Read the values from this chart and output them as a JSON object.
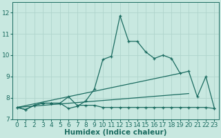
{
  "xlabel": "Humidex (Indice chaleur)",
  "background_color": "#c8e8e0",
  "line_color": "#1a6b60",
  "grid_color": "#b0d4cc",
  "xlim": [
    -0.5,
    23.5
  ],
  "ylim": [
    7.0,
    12.5
  ],
  "yticks": [
    7,
    8,
    9,
    10,
    11,
    12
  ],
  "xticks": [
    0,
    1,
    2,
    3,
    4,
    5,
    6,
    7,
    8,
    9,
    10,
    11,
    12,
    13,
    14,
    15,
    16,
    17,
    18,
    19,
    20,
    21,
    22,
    23
  ],
  "tick_fontsize": 6.5,
  "xlabel_fontsize": 7.5,
  "series": {
    "line1_x": [
      0,
      1,
      2,
      3,
      4,
      5,
      6,
      7,
      8,
      9,
      10,
      11,
      12,
      13,
      14,
      15,
      16,
      17,
      18,
      19,
      20,
      21,
      22,
      23
    ],
    "line1_y": [
      7.55,
      7.45,
      7.65,
      7.75,
      7.75,
      7.75,
      7.5,
      7.6,
      7.85,
      8.4,
      9.8,
      9.95,
      11.85,
      10.65,
      10.65,
      10.15,
      9.85,
      10.0,
      9.85,
      9.15,
      9.25,
      8.05,
      9.0,
      7.5
    ],
    "line2_x": [
      0,
      1,
      2,
      3,
      4,
      5,
      6,
      7,
      8,
      9,
      10,
      11,
      12,
      13,
      14,
      15,
      16,
      17,
      18,
      19,
      20,
      21,
      22,
      23
    ],
    "line2_y": [
      7.55,
      7.45,
      7.65,
      7.75,
      7.75,
      7.75,
      8.05,
      7.65,
      7.65,
      7.65,
      7.55,
      7.55,
      7.55,
      7.55,
      7.55,
      7.55,
      7.55,
      7.55,
      7.55,
      7.55,
      7.55,
      7.55,
      7.55,
      7.5
    ],
    "trend1_x": [
      0,
      19
    ],
    "trend1_y": [
      7.55,
      9.15
    ],
    "trend2_x": [
      0,
      20
    ],
    "trend2_y": [
      7.55,
      8.2
    ]
  }
}
